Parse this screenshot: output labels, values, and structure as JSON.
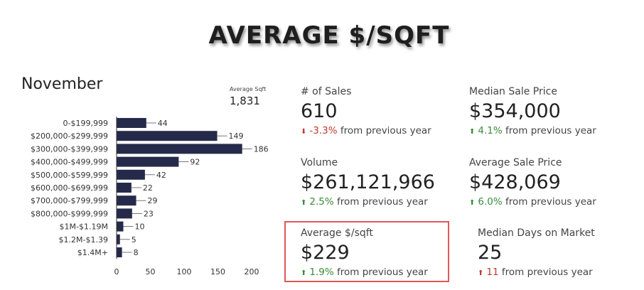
{
  "title": "AVERAGE $/SQFT",
  "month": "November",
  "average_sqft": {
    "label": "Average Sqft",
    "value": "1,831"
  },
  "stats": [
    {
      "label": "# of Sales",
      "value": "610",
      "change": "-3.3%",
      "direction": "down",
      "suffix": "from previous year"
    },
    {
      "label": "Median Sale Price",
      "value": "$354,000",
      "change": "4.1%",
      "direction": "up",
      "suffix": "from previous year"
    },
    {
      "label": "Volume",
      "value": "$261,121,966",
      "change": "2.5%",
      "direction": "up",
      "suffix": "from previous year"
    },
    {
      "label": "Average Sale Price",
      "value": "$428,069",
      "change": "6.0%",
      "direction": "up",
      "suffix": "from previous year"
    },
    {
      "label": "Average $/sqft",
      "value": "$229",
      "change": "1.9%",
      "direction": "up",
      "suffix": "from previous year"
    },
    {
      "label": "Median Days on Market",
      "value": "25",
      "change": "11",
      "direction": "up",
      "suffix": "from previous year"
    }
  ],
  "colors": {
    "bar": "#262a4a",
    "up": "#3a8a3a",
    "down": "#c0392b",
    "highlight": "#e05757",
    "red_up_arrow": "#c0392b"
  },
  "chart_data": {
    "type": "bar",
    "orientation": "horizontal",
    "categories": [
      "0-$199,999",
      "$200,000-$299,999",
      "$300,000-$399,999",
      "$400,000-$499,999",
      "$500,000-$599,999",
      "$600,000-$699,999",
      "$700,000-$799,999",
      "$800,000-$999,999",
      "$1M-$1.19M",
      "$1.2M-$1.39",
      "$1.4M+"
    ],
    "values": [
      44,
      149,
      186,
      92,
      42,
      22,
      29,
      23,
      10,
      5,
      8
    ],
    "xlim": [
      0,
      200
    ],
    "xticks": [
      "0",
      "50",
      "100",
      "150",
      "200"
    ],
    "grid": false
  }
}
